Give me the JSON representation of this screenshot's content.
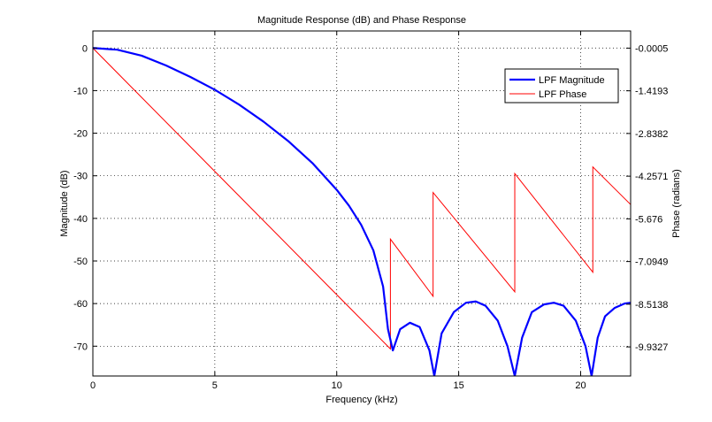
{
  "chart_data": {
    "type": "line",
    "title": "Magnitude Response (dB) and Phase Response",
    "xlabel": "Frequency (kHz)",
    "ylabel_left": "Magnitude (dB)",
    "ylabel_right": "Phase (radians)",
    "xlim": [
      0,
      22.05
    ],
    "ylim_left": [
      -77,
      4
    ],
    "ylim_right": [
      -10.9,
      0.57
    ],
    "x_ticks": [
      0,
      5,
      10,
      15,
      20
    ],
    "y_ticks_left": [
      0,
      -10,
      -20,
      -30,
      -40,
      -50,
      -60,
      -70
    ],
    "y_ticks_right": [
      "-0.0005",
      "-1.4193",
      "-2.8382",
      "-4.2571",
      "-5.676",
      "-7.0949",
      "-8.5138",
      "-9.9327"
    ],
    "grid": true,
    "legend_position": "top-right",
    "series": [
      {
        "name": "LPF Magnitude",
        "axis": "left",
        "color": "#0000ff",
        "x": [
          0,
          1,
          2,
          3,
          4,
          5,
          6,
          7,
          8,
          9,
          10,
          10.5,
          11,
          11.5,
          11.9,
          12.1,
          12.3,
          12.6,
          13.0,
          13.4,
          13.8,
          14.0,
          14.3,
          14.8,
          15.3,
          15.7,
          16.1,
          16.6,
          17.0,
          17.3,
          17.6,
          18.0,
          18.5,
          18.9,
          19.3,
          19.8,
          20.2,
          20.45,
          20.7,
          21.0,
          21.4,
          21.8,
          22.05
        ],
        "y": [
          0,
          -0.4,
          -1.8,
          -4.1,
          -6.8,
          -9.8,
          -13.3,
          -17.3,
          -21.8,
          -27,
          -33.3,
          -37,
          -41.5,
          -47.5,
          -56,
          -66,
          -71,
          -66,
          -64.5,
          -65.5,
          -71,
          -77,
          -67,
          -62,
          -59.8,
          -59.5,
          -60.5,
          -64,
          -70,
          -77,
          -68,
          -62,
          -60.2,
          -59.8,
          -60.5,
          -64,
          -70,
          -77,
          -68,
          -63,
          -61,
          -60,
          -59.8
        ]
      },
      {
        "name": "LPF Phase",
        "axis": "right",
        "color": "#ff0000",
        "x": [
          0,
          12.2,
          12.2,
          13.95,
          13.95,
          17.3,
          17.3,
          20.5,
          20.5,
          22.05
        ],
        "y": [
          -0.0005,
          -10.0,
          -6.35,
          -8.25,
          -4.8,
          -8.1,
          -4.17,
          -7.45,
          -3.95,
          -5.2
        ]
      }
    ]
  }
}
